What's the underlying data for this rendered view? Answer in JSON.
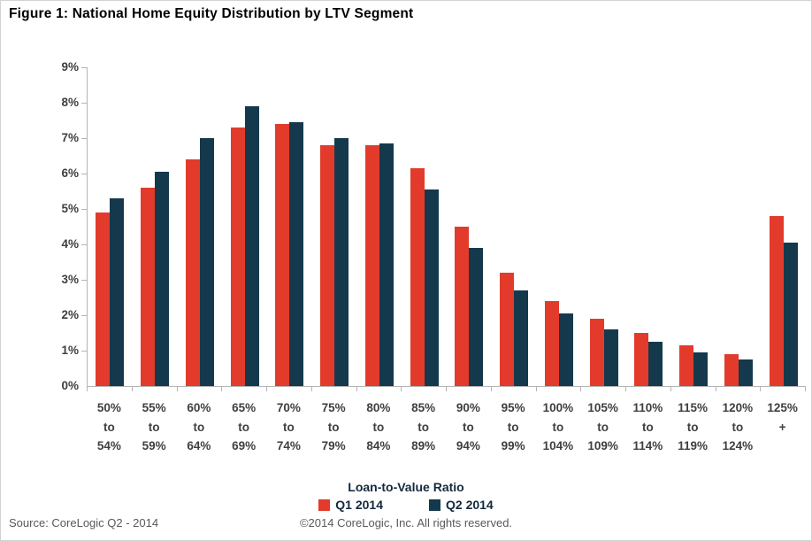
{
  "title": "Figure 1: National Home Equity Distribution by LTV Segment",
  "footer": {
    "source": "Source: CoreLogic Q2 - 2014",
    "copyright": "©2014 CoreLogic, Inc. All rights reserved."
  },
  "colors": {
    "q1_red": "#e23b2c",
    "q2_navy": "#15394c",
    "axis_gray": "#b5b5b5",
    "tick_label": "#3f3f3f",
    "footer_text": "#595959"
  },
  "chart_data": {
    "type": "bar",
    "title": "Figure 1: National Home Equity Distribution by LTV Segment",
    "xlabel": "Loan-to-Value Ratio",
    "ylabel": "",
    "ylim": [
      0,
      9
    ],
    "yticks": [
      0,
      1,
      2,
      3,
      4,
      5,
      6,
      7,
      8,
      9
    ],
    "ytick_suffix": "%",
    "grid": false,
    "legend_position": "bottom",
    "categories": [
      "50% to 54%",
      "55% to 59%",
      "60% to 64%",
      "65% to 69%",
      "70% to 74%",
      "75% to 79%",
      "80% to 84%",
      "85% to 89%",
      "90% to 94%",
      "95% to 99%",
      "100% to 104%",
      "105% to 109%",
      "110% to 114%",
      "115% to 119%",
      "120% to 124%",
      "125% +"
    ],
    "categories_lines": [
      [
        "50%",
        "to",
        "54%"
      ],
      [
        "55%",
        "to",
        "59%"
      ],
      [
        "60%",
        "to",
        "64%"
      ],
      [
        "65%",
        "to",
        "69%"
      ],
      [
        "70%",
        "to",
        "74%"
      ],
      [
        "75%",
        "to",
        "79%"
      ],
      [
        "80%",
        "to",
        "84%"
      ],
      [
        "85%",
        "to",
        "89%"
      ],
      [
        "90%",
        "to",
        "94%"
      ],
      [
        "95%",
        "to",
        "99%"
      ],
      [
        "100%",
        "to",
        "104%"
      ],
      [
        "105%",
        "to",
        "109%"
      ],
      [
        "110%",
        "to",
        "114%"
      ],
      [
        "115%",
        "to",
        "119%"
      ],
      [
        "120%",
        "to",
        "124%"
      ],
      [
        "125%",
        "+"
      ]
    ],
    "series": [
      {
        "name": "Q1 2014",
        "color": "#e23b2c",
        "values": [
          4.9,
          5.6,
          6.4,
          7.3,
          7.4,
          6.8,
          6.8,
          6.15,
          4.5,
          3.2,
          2.4,
          1.9,
          1.5,
          1.15,
          0.9,
          4.8
        ]
      },
      {
        "name": "Q2 2014",
        "color": "#15394c",
        "values": [
          5.3,
          6.05,
          7.0,
          7.9,
          7.45,
          7.0,
          6.85,
          5.55,
          3.9,
          2.7,
          2.05,
          1.6,
          1.25,
          0.95,
          0.75,
          4.05
        ]
      }
    ]
  }
}
